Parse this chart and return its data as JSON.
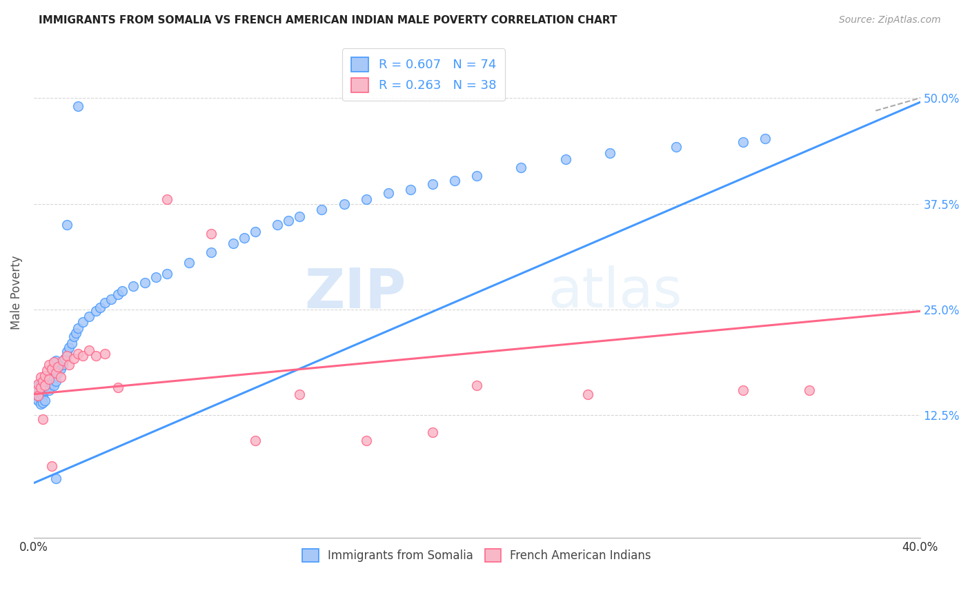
{
  "title": "IMMIGRANTS FROM SOMALIA VS FRENCH AMERICAN INDIAN MALE POVERTY CORRELATION CHART",
  "source": "Source: ZipAtlas.com",
  "ylabel": "Male Poverty",
  "xlim": [
    0.0,
    0.4
  ],
  "ylim": [
    -0.02,
    0.56
  ],
  "x_ticks": [
    0.0,
    0.1,
    0.2,
    0.3,
    0.4
  ],
  "x_tick_labels": [
    "0.0%",
    "",
    "",
    "",
    "40.0%"
  ],
  "y_tick_labels": [
    "12.5%",
    "25.0%",
    "37.5%",
    "50.0%"
  ],
  "y_ticks": [
    0.125,
    0.25,
    0.375,
    0.5
  ],
  "legend1_label": "R = 0.607   N = 74",
  "legend2_label": "R = 0.263   N = 38",
  "color_somalia": "#a8c8f8",
  "color_french": "#f8b8c8",
  "color_line_somalia": "#4499ff",
  "color_line_french": "#ff6688",
  "color_right_axis": "#4499ff",
  "watermark_zip": "ZIP",
  "watermark_atlas": "atlas",
  "somalia_x": [
    0.001,
    0.001,
    0.001,
    0.002,
    0.002,
    0.002,
    0.002,
    0.003,
    0.003,
    0.003,
    0.003,
    0.004,
    0.004,
    0.004,
    0.005,
    0.005,
    0.005,
    0.006,
    0.006,
    0.007,
    0.007,
    0.008,
    0.008,
    0.009,
    0.009,
    0.01,
    0.01,
    0.011,
    0.012,
    0.013,
    0.014,
    0.015,
    0.016,
    0.017,
    0.018,
    0.019,
    0.02,
    0.022,
    0.025,
    0.028,
    0.03,
    0.032,
    0.035,
    0.038,
    0.04,
    0.045,
    0.05,
    0.055,
    0.06,
    0.07,
    0.08,
    0.09,
    0.095,
    0.1,
    0.11,
    0.115,
    0.12,
    0.13,
    0.14,
    0.15,
    0.16,
    0.17,
    0.18,
    0.19,
    0.2,
    0.22,
    0.24,
    0.26,
    0.29,
    0.32,
    0.33,
    0.01,
    0.015,
    0.02
  ],
  "somalia_y": [
    0.155,
    0.15,
    0.145,
    0.16,
    0.155,
    0.148,
    0.142,
    0.162,
    0.15,
    0.145,
    0.138,
    0.158,
    0.148,
    0.14,
    0.165,
    0.155,
    0.142,
    0.168,
    0.158,
    0.172,
    0.155,
    0.178,
    0.162,
    0.182,
    0.16,
    0.19,
    0.165,
    0.175,
    0.18,
    0.185,
    0.192,
    0.2,
    0.205,
    0.21,
    0.218,
    0.222,
    0.228,
    0.235,
    0.242,
    0.248,
    0.252,
    0.258,
    0.262,
    0.268,
    0.272,
    0.278,
    0.282,
    0.288,
    0.292,
    0.305,
    0.318,
    0.328,
    0.335,
    0.342,
    0.35,
    0.355,
    0.36,
    0.368,
    0.375,
    0.38,
    0.388,
    0.392,
    0.398,
    0.402,
    0.408,
    0.418,
    0.428,
    0.435,
    0.442,
    0.448,
    0.452,
    0.05,
    0.35,
    0.49
  ],
  "french_x": [
    0.001,
    0.002,
    0.002,
    0.003,
    0.003,
    0.004,
    0.005,
    0.005,
    0.006,
    0.007,
    0.007,
    0.008,
    0.009,
    0.01,
    0.011,
    0.012,
    0.013,
    0.015,
    0.016,
    0.018,
    0.02,
    0.022,
    0.025,
    0.028,
    0.032,
    0.038,
    0.06,
    0.08,
    0.1,
    0.12,
    0.15,
    0.18,
    0.2,
    0.25,
    0.32,
    0.35,
    0.004,
    0.008
  ],
  "french_y": [
    0.155,
    0.162,
    0.148,
    0.17,
    0.158,
    0.165,
    0.172,
    0.16,
    0.178,
    0.185,
    0.168,
    0.18,
    0.188,
    0.175,
    0.182,
    0.17,
    0.19,
    0.195,
    0.185,
    0.192,
    0.198,
    0.195,
    0.202,
    0.195,
    0.198,
    0.158,
    0.38,
    0.34,
    0.095,
    0.15,
    0.095,
    0.105,
    0.16,
    0.15,
    0.155,
    0.155,
    0.12,
    0.065
  ],
  "somalia_line_x": [
    0.0,
    0.4
  ],
  "somalia_line_y": [
    0.045,
    0.495
  ],
  "french_line_x": [
    0.0,
    0.4
  ],
  "french_line_y": [
    0.15,
    0.248
  ],
  "dashed_line_x": [
    0.38,
    0.44
  ],
  "dashed_line_y": [
    0.485,
    0.53
  ]
}
